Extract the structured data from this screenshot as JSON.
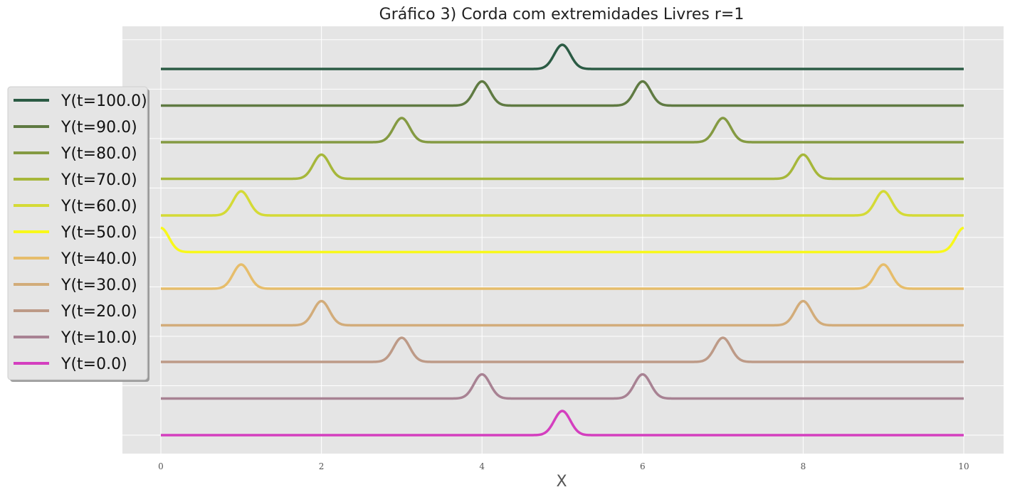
{
  "chart_data": {
    "type": "line",
    "title": "Gráfico 3) Corda com extremidades Livres r=1",
    "xlabel": "X",
    "ylabel": "",
    "xlim": [
      -0.5,
      10.5
    ],
    "x_ticks": [
      "0",
      "2",
      "4",
      "6",
      "8",
      "10"
    ],
    "grid": true,
    "legend_position": "left",
    "pulse_width": 0.1,
    "pulse_height": 0.65,
    "series": [
      {
        "name": "Y(t=100.0)",
        "t": 100.0,
        "color": "#2b5b44",
        "peaks": [
          5
        ],
        "offset": 10
      },
      {
        "name": "Y(t=90.0)",
        "t": 90.0,
        "color": "#5f7a42",
        "peaks": [
          4,
          6
        ],
        "offset": 9
      },
      {
        "name": "Y(t=80.0)",
        "t": 80.0,
        "color": "#849a42",
        "peaks": [
          3,
          7
        ],
        "offset": 8
      },
      {
        "name": "Y(t=70.0)",
        "t": 70.0,
        "color": "#a6b73a",
        "peaks": [
          2,
          8
        ],
        "offset": 7
      },
      {
        "name": "Y(t=60.0)",
        "t": 60.0,
        "color": "#d4da36",
        "peaks": [
          1,
          9
        ],
        "offset": 6
      },
      {
        "name": "Y(t=50.0)",
        "t": 50.0,
        "color": "#f8f81a",
        "peaks": [
          0,
          10
        ],
        "offset": 5
      },
      {
        "name": "Y(t=40.0)",
        "t": 40.0,
        "color": "#e6bd6b",
        "peaks": [
          1,
          9
        ],
        "offset": 4
      },
      {
        "name": "Y(t=30.0)",
        "t": 30.0,
        "color": "#d2ac7a",
        "peaks": [
          2,
          8
        ],
        "offset": 3
      },
      {
        "name": "Y(t=20.0)",
        "t": 20.0,
        "color": "#bd9a87",
        "peaks": [
          3,
          7
        ],
        "offset": 2
      },
      {
        "name": "Y(t=10.0)",
        "t": 10.0,
        "color": "#a88293",
        "peaks": [
          4,
          6
        ],
        "offset": 1
      },
      {
        "name": "Y(t=0.0)",
        "t": 0.0,
        "color": "#d43fbf",
        "peaks": [
          5
        ],
        "offset": 0
      }
    ]
  }
}
